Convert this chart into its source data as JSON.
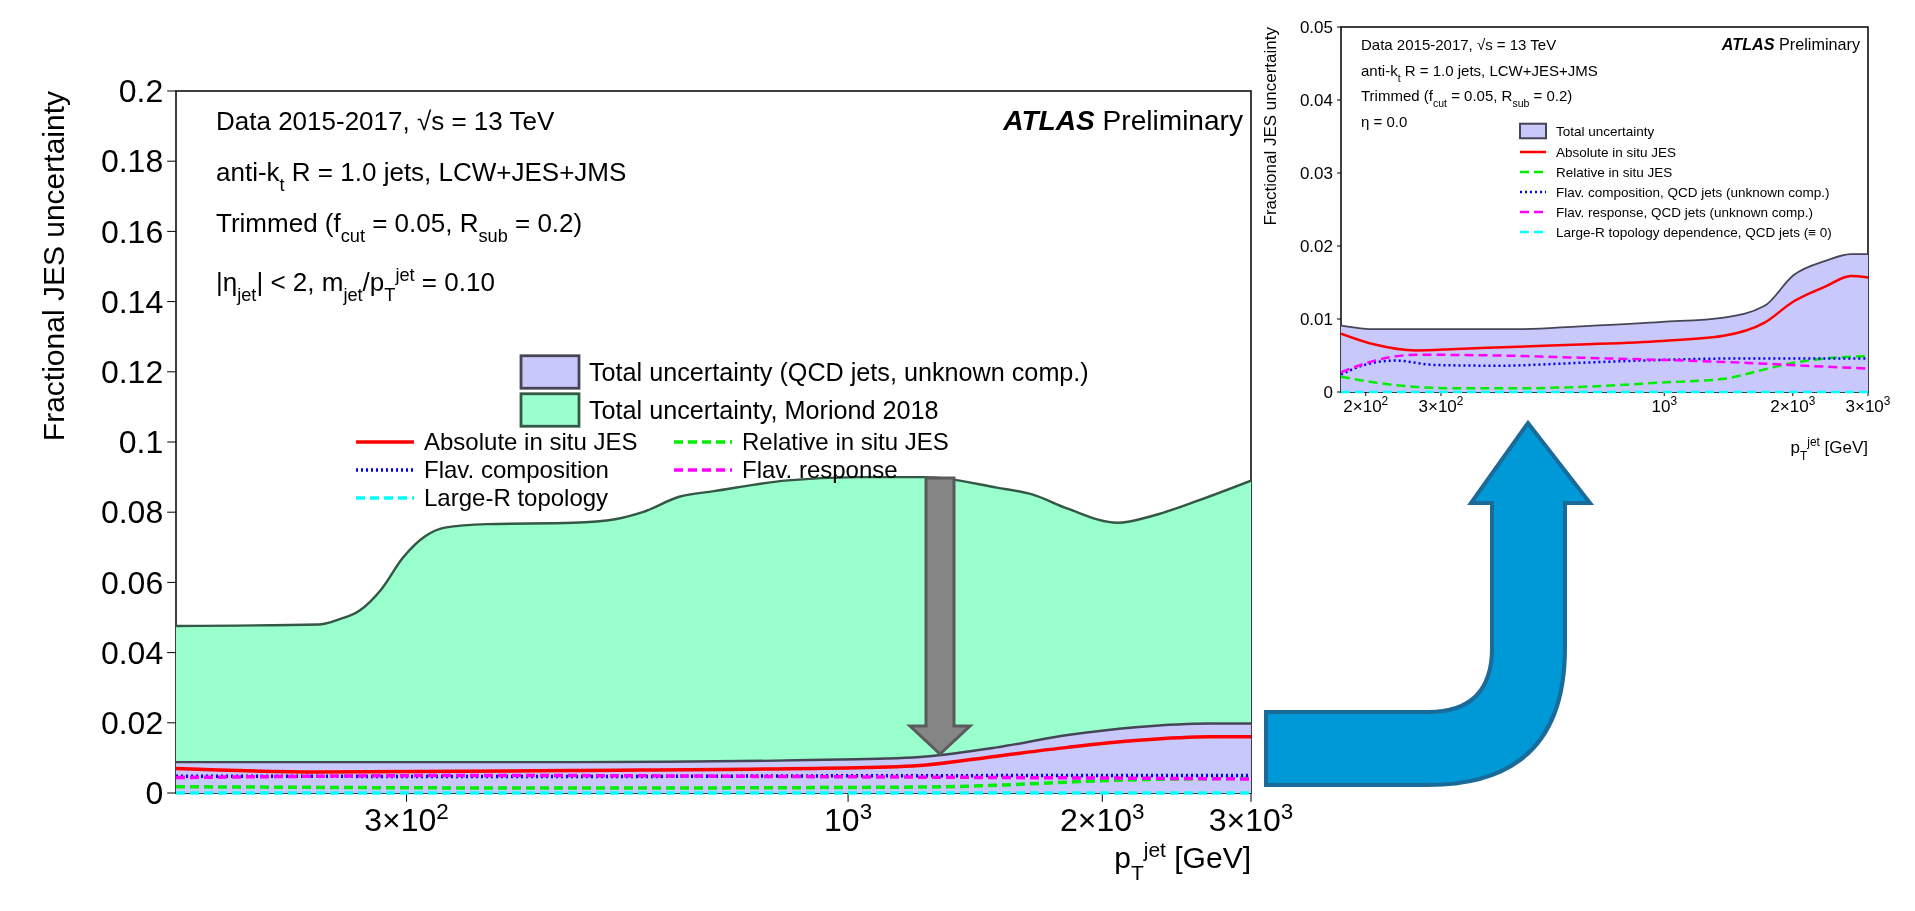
{
  "chart_data": [
    {
      "type": "line",
      "ylabel": "Fractional JES uncertainty",
      "xlabel": "p$_{T}$$^{jet}$ [GeV]",
      "log": "x",
      "legend": "top",
      "annotations": [
        "ATLAS Preliminary",
        "Data 2015-2017, √s = 13 TeV",
        "anti-k$_{t}$ R = 1.0 jets, LCW+JES+JMS",
        "Trimmed (f$_{cut}$ = 0.05, R$_{sub}$ = 0.2)",
        "|η$_{jet}$| < 2, m$_{jet}$/p$_{T}$$^{jet}$ = 0.10"
      ],
      "xlim": [
        160,
        3000
      ],
      "xticks": [
        {
          "value": 300,
          "label": "3×10$^{2}$"
        },
        {
          "value": 1000,
          "label": "10$^{3}$"
        },
        {
          "value": 2000,
          "label": "2×10$^{3}$"
        },
        {
          "value": 3000,
          "label": "3×10$^{3}$"
        }
      ],
      "ylim": [
        0,
        0.2
      ],
      "yticks": [
        0,
        0.02,
        0.04,
        0.06,
        0.08,
        0.1,
        0.12,
        0.14,
        0.16,
        0.18,
        0.2
      ],
      "series": [
        {
          "name": "Total uncertainty (QCD jets, unknown comp.)",
          "type": "area",
          "color": "#c8c8fa",
          "x": [
            160,
            472,
            1023,
            1237,
            1500,
            1820,
            2208,
            2680,
            3000
          ],
          "values": [
            0.0088,
            0.0088,
            0.0096,
            0.0104,
            0.013,
            0.0165,
            0.0188,
            0.0198,
            0.0198
          ]
        },
        {
          "name": "Total uncertainty, Moriond 2018",
          "type": "area",
          "color": "#99ffcc",
          "x": [
            160,
            236,
            249,
            264,
            280,
            297,
            315,
            333,
            374,
            472,
            530,
            571,
            631,
            694,
            841,
            1023,
            1237,
            1500,
            1655,
            1820,
            2085,
            2296,
            2575,
            3000
          ],
          "values": [
            0.0476,
            0.048,
            0.0494,
            0.052,
            0.058,
            0.067,
            0.073,
            0.0756,
            0.0766,
            0.077,
            0.078,
            0.08,
            0.0844,
            0.086,
            0.089,
            0.09,
            0.09,
            0.087,
            0.085,
            0.081,
            0.077,
            0.079,
            0.083,
            0.089
          ]
        },
        {
          "name": "Absolute in situ JES",
          "type": "line",
          "color": "#ff0000",
          "line_style": "solid",
          "x": [
            160,
            236,
            472,
            1023,
            1237,
            1500,
            1820,
            2208,
            2680,
            3000
          ],
          "values": [
            0.007,
            0.006,
            0.0064,
            0.0072,
            0.008,
            0.0105,
            0.013,
            0.015,
            0.016,
            0.016
          ]
        },
        {
          "name": "Relative in situ JES",
          "type": "line",
          "color": "#00ee00",
          "line_style": "dashed",
          "x": [
            160,
            472,
            1237,
            2208,
            3000
          ],
          "values": [
            0.0018,
            0.0014,
            0.0017,
            0.0038,
            0.0042
          ]
        },
        {
          "name": "Flav. composition",
          "type": "line",
          "color": "#0000ee",
          "line_style": "dotted",
          "x": [
            160,
            472,
            1023,
            3000
          ],
          "values": [
            0.0048,
            0.0047,
            0.0049,
            0.005
          ]
        },
        {
          "name": "Flav. response",
          "type": "line",
          "color": "#ff00ff",
          "line_style": "dashed",
          "x": [
            160,
            374,
            1023,
            2208,
            3000
          ],
          "values": [
            0.0044,
            0.005,
            0.0046,
            0.0042,
            0.004
          ]
        },
        {
          "name": "Large-R topology",
          "type": "line",
          "color": "#00ffff",
          "line_style": "dashed",
          "x": [
            160,
            3000
          ],
          "values": [
            0,
            0
          ]
        }
      ]
    },
    {
      "type": "line",
      "ylabel": "Fractional JES uncertainty",
      "xlabel": "p$_{T}$$^{jet}$ [GeV]",
      "log": "x",
      "legend": "top right",
      "annotations": [
        "ATLAS Preliminary",
        "Data 2015-2017, √s = 13 TeV",
        "anti-k$_{t}$ R = 1.0 jets, LCW+JES+JMS",
        "Trimmed (f$_{cut}$ = 0.05, R$_{sub}$ = 0.2)",
        "η = 0.0"
      ],
      "xlim": [
        175,
        3000
      ],
      "xticks": [
        {
          "value": 200,
          "label": "2×10$^{2}$"
        },
        {
          "value": 300,
          "label": "3×10$^{2}$"
        },
        {
          "value": 1000,
          "label": "10$^{3}$"
        },
        {
          "value": 2000,
          "label": "2×10$^{3}$"
        },
        {
          "value": 3000,
          "label": "3×10$^{3}$"
        }
      ],
      "ylim": [
        0,
        0.05
      ],
      "yticks": [
        0,
        0.01,
        0.02,
        0.03,
        0.04,
        0.05
      ],
      "series": [
        {
          "name": "Total uncertainty",
          "type": "area",
          "color": "#c8c8fa",
          "x": [
            175,
            210,
            292,
            455,
            635,
            989,
            1377,
            1718,
            2007,
            2395,
            2735,
            3000
          ],
          "values": [
            0.0091,
            0.0086,
            0.0086,
            0.0086,
            0.009,
            0.0096,
            0.0102,
            0.0118,
            0.016,
            0.018,
            0.0189,
            0.0189
          ]
        },
        {
          "name": "Absolute in situ JES",
          "type": "line",
          "color": "#ff0000",
          "line_style": "solid",
          "x": [
            175,
            210,
            262,
            327,
            455,
            635,
            989,
            1377,
            1718,
            2007,
            2395,
            2735,
            3000
          ],
          "values": [
            0.008,
            0.0065,
            0.0057,
            0.0059,
            0.0062,
            0.0065,
            0.007,
            0.0077,
            0.0095,
            0.0124,
            0.0145,
            0.0159,
            0.0157
          ]
        },
        {
          "name": "Relative in situ JES",
          "type": "line",
          "color": "#00ee00",
          "line_style": "dashed",
          "x": [
            175,
            210,
            262,
            327,
            455,
            635,
            989,
            1377,
            1718,
            2007,
            2395,
            3000
          ],
          "values": [
            0.0021,
            0.0013,
            0.0007,
            0.0005,
            0.0005,
            0.0007,
            0.0013,
            0.0018,
            0.0031,
            0.004,
            0.0046,
            0.0049
          ]
        },
        {
          "name": "Flav. composition, QCD jets (unknown comp.)",
          "type": "line",
          "color": "#0000ee",
          "line_style": "dotted",
          "x": [
            175,
            201,
            234,
            292,
            408,
            635,
            989,
            1539,
            3000
          ],
          "values": [
            0.0024,
            0.0038,
            0.0043,
            0.0037,
            0.0036,
            0.004,
            0.0044,
            0.0046,
            0.0046
          ]
        },
        {
          "name": "Flav. response, QCD jets (unknown comp.)",
          "type": "line",
          "color": "#ff00ff",
          "line_style": "dashed",
          "x": [
            175,
            210,
            262,
            408,
            635,
            989,
            1539,
            2144,
            3000
          ],
          "values": [
            0.0027,
            0.0043,
            0.0051,
            0.005,
            0.0047,
            0.0044,
            0.004,
            0.0036,
            0.0032
          ]
        },
        {
          "name": "Large-R topology dependence, QCD jets (≡ 0)",
          "type": "line",
          "color": "#00ffff",
          "line_style": "dashed",
          "x": [
            175,
            3000
          ],
          "values": [
            0,
            0
          ]
        }
      ]
    }
  ]
}
